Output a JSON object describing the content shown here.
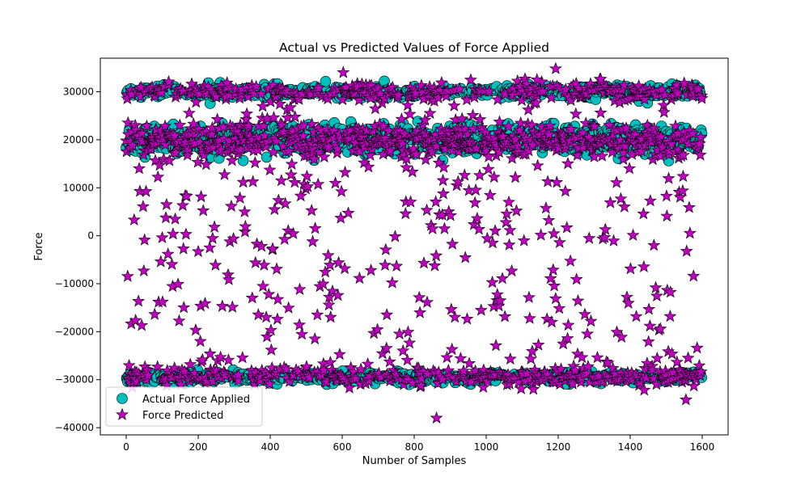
{
  "chart_data": {
    "type": "scatter",
    "title": "Actual vs Predicted Values of Force Applied",
    "xlabel": "Number of Samples",
    "ylabel": "Force",
    "xlim": [
      -72,
      1672
    ],
    "ylim": [
      -41500,
      37000
    ],
    "xticks": [
      0,
      200,
      400,
      600,
      800,
      1000,
      1200,
      1400,
      1600
    ],
    "yticks": [
      -40000,
      -30000,
      -20000,
      -10000,
      0,
      10000,
      20000,
      30000
    ],
    "grid": false,
    "legend_position": "lower-left",
    "n_samples": 1600,
    "series": [
      {
        "name": "Actual Force Applied",
        "marker": "circle",
        "color": "#00bfbf",
        "edge_color": "#000000",
        "value_levels": [
          30000,
          20000,
          -29500
        ],
        "level_fractions": [
          0.26,
          0.46,
          0.28
        ],
        "level_spread": [
          700,
          1500,
          550
        ],
        "extreme_points": [
          {
            "x": 1193,
            "y": 31000
          },
          {
            "x": 786,
            "y": -31000
          },
          {
            "x": 1222,
            "y": -30900
          }
        ]
      },
      {
        "name": "Force Predicted",
        "marker": "star",
        "color": "#bf00bf",
        "edge_color": "#000000",
        "value_levels": [
          30000,
          20000,
          -29500
        ],
        "level_fractions": [
          0.2,
          0.33,
          0.22
        ],
        "level_spread": [
          900,
          1700,
          900
        ],
        "scatter_fraction": 0.25,
        "scatter_range": [
          -29000,
          29000
        ],
        "extreme_points": [
          {
            "x": 1193,
            "y": 34800
          },
          {
            "x": 603,
            "y": 34000
          },
          {
            "x": 1141,
            "y": 32500
          },
          {
            "x": 1318,
            "y": 32600
          },
          {
            "x": 1550,
            "y": 31800
          },
          {
            "x": 862,
            "y": -38000
          },
          {
            "x": 1555,
            "y": -34200
          }
        ]
      }
    ]
  }
}
